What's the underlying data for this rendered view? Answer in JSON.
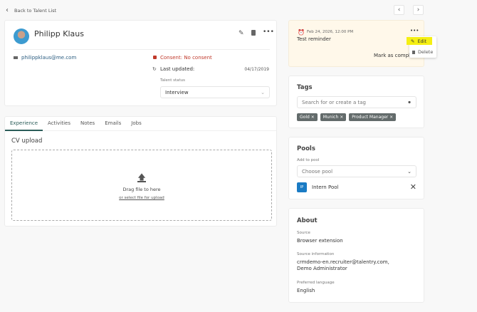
{
  "back_link": "Back to Talent List",
  "profile": {
    "name": "Philipp Klaus",
    "email": "philippklaus@me.com",
    "consent": "Consent: No consent",
    "last_updated_label": "Last updated:",
    "last_updated": "04/17/2019",
    "status_label": "Talent status",
    "status": "Interview"
  },
  "tabs": [
    {
      "label": "Experience",
      "active": true
    },
    {
      "label": "Activities"
    },
    {
      "label": "Notes"
    },
    {
      "label": "Emails"
    },
    {
      "label": "Jobs"
    }
  ],
  "cv": {
    "title": "CV upload",
    "drag": "Drag file to here",
    "select": "or select file for upload"
  },
  "reminder": {
    "date": "Feb 24, 2026, 12:00 PM",
    "text": "Test reminder",
    "mark": "Mark as complete",
    "menu": {
      "edit": "Edit",
      "delete": "Delete"
    }
  },
  "tags": {
    "title": "Tags",
    "placeholder": "Search for or create a tag",
    "items": [
      "Gold",
      "Munich",
      "Product Manager"
    ]
  },
  "pools": {
    "title": "Pools",
    "add_label": "Add to pool",
    "placeholder": "Choose pool",
    "items": [
      {
        "initials": "IP",
        "name": "Intern Pool"
      }
    ]
  },
  "about": {
    "title": "About",
    "fields": [
      {
        "label": "Source",
        "value": "Browser extension"
      },
      {
        "label": "Source information",
        "value": "crmdemo-en.recruiter@talentry.com, Demo Administrator"
      },
      {
        "label": "Preferred language",
        "value": "English"
      }
    ]
  },
  "colors": {
    "accent": "#2b5d59",
    "consent": "#c0392b",
    "reminder_bg": "#fff8ea",
    "highlight": "#f5ef13",
    "pool_badge": "#1a7bc4"
  }
}
